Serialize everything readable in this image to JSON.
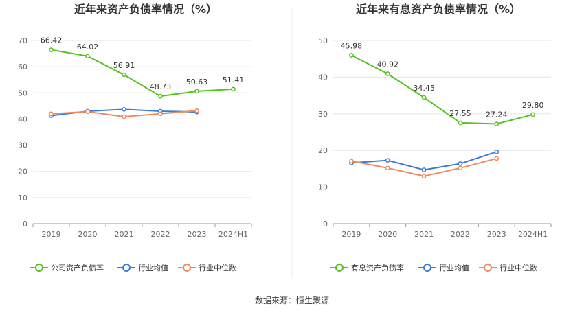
{
  "source_prefix": "数据来源：",
  "source_name": "恒生聚源",
  "chart_data": [
    {
      "type": "line",
      "title": "近年来资产负债率情况（%）",
      "categories": [
        "2019",
        "2020",
        "2021",
        "2022",
        "2023",
        "2024H1"
      ],
      "ylim": [
        0,
        70
      ],
      "yticks": [
        0,
        10,
        20,
        30,
        40,
        50,
        60,
        70
      ],
      "grid": true,
      "series": [
        {
          "name": "公司资产负债率",
          "color": "#52c41a",
          "values": [
            66.42,
            64.02,
            56.91,
            48.73,
            50.63,
            51.41
          ],
          "labels": [
            "66.42",
            "64.02",
            "56.91",
            "48.73",
            "50.63",
            "51.41"
          ]
        },
        {
          "name": "行业均值",
          "color": "#3b7bd8",
          "values": [
            41.3,
            43.0,
            43.7,
            43.0,
            42.7,
            null
          ]
        },
        {
          "name": "行业中位数",
          "color": "#f08a5d",
          "values": [
            42.0,
            42.8,
            40.9,
            42.0,
            43.2,
            null
          ]
        }
      ]
    },
    {
      "type": "line",
      "title": "近年来有息资产负债率情况（%）",
      "categories": [
        "2019",
        "2020",
        "2021",
        "2022",
        "2023",
        "2024H1"
      ],
      "ylim": [
        0,
        50
      ],
      "yticks": [
        0,
        10,
        20,
        30,
        40,
        50
      ],
      "grid": true,
      "series": [
        {
          "name": "有息资产负债率",
          "color": "#52c41a",
          "values": [
            45.98,
            40.92,
            34.45,
            27.55,
            27.24,
            29.8
          ],
          "labels": [
            "45.98",
            "40.92",
            "34.45",
            "27.55",
            "27.24",
            "29.80"
          ]
        },
        {
          "name": "行业均值",
          "color": "#3b7bd8",
          "values": [
            16.6,
            17.3,
            14.7,
            16.4,
            19.6,
            null
          ]
        },
        {
          "name": "行业中位数",
          "color": "#f08a5d",
          "values": [
            17.1,
            15.2,
            13.0,
            15.2,
            17.8,
            null
          ]
        }
      ]
    }
  ]
}
